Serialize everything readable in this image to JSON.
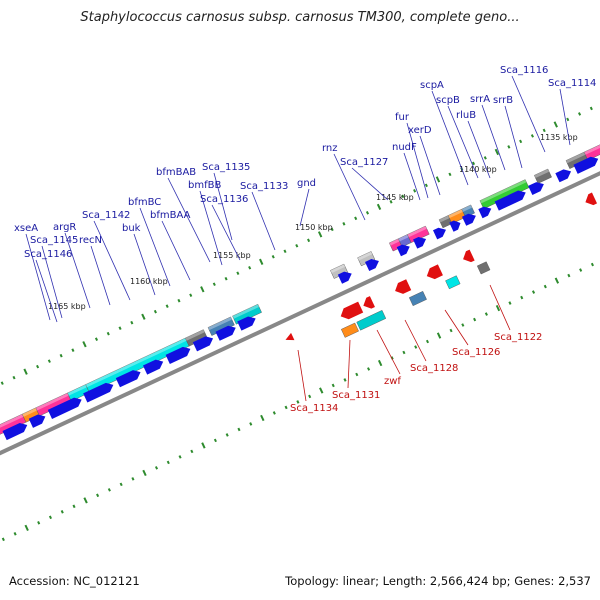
{
  "title": "Staphylococcus carnosus subsp. carnosus TM300, complete geno...",
  "footer": {
    "accession": "Accession: NC_012121",
    "summary": "Topology: linear; Length: 2,566,424 bp; Genes: 2,537"
  },
  "colors": {
    "forward_label": "#1a1aa0",
    "reverse_label": "#c01010",
    "forward_gene": "#1010e0",
    "reverse_gene": "#e01010",
    "tick": "#2e8b2e",
    "backbone": "#888888"
  },
  "kbp_ticks": [
    {
      "text": "1135 kbp"
    },
    {
      "text": "1140 kbp"
    },
    {
      "text": "1145 kbp"
    },
    {
      "text": "1150 kbp"
    },
    {
      "text": "1155 kbp"
    },
    {
      "text": "1160 kbp"
    },
    {
      "text": "1165 kbp"
    }
  ],
  "forward_labels": [
    {
      "text": "Sca_1116"
    },
    {
      "text": "Sca_1114"
    },
    {
      "text": "scpA"
    },
    {
      "text": "scpB"
    },
    {
      "text": "srrA"
    },
    {
      "text": "rluB"
    },
    {
      "text": "srrB"
    },
    {
      "text": "fur"
    },
    {
      "text": "xerD"
    },
    {
      "text": "nudF"
    },
    {
      "text": "Sca_1127"
    },
    {
      "text": "rnz"
    },
    {
      "text": "gnd"
    },
    {
      "text": "Sca_1135"
    },
    {
      "text": "Sca_1133"
    },
    {
      "text": "bfmBAB"
    },
    {
      "text": "bmfBB"
    },
    {
      "text": "Sca_1136"
    },
    {
      "text": "bfmBC"
    },
    {
      "text": "bfmBAA"
    },
    {
      "text": "Sca_1142"
    },
    {
      "text": "buk"
    },
    {
      "text": "argR"
    },
    {
      "text": "recN"
    },
    {
      "text": "xseA"
    },
    {
      "text": "Sca_1145"
    },
    {
      "text": "Sca_1146"
    }
  ],
  "reverse_labels": [
    {
      "text": "Sca_1122"
    },
    {
      "text": "Sca_1126"
    },
    {
      "text": "Sca_1128"
    },
    {
      "text": "zwf"
    },
    {
      "text": "Sca_1131"
    },
    {
      "text": "Sca_1134"
    }
  ]
}
